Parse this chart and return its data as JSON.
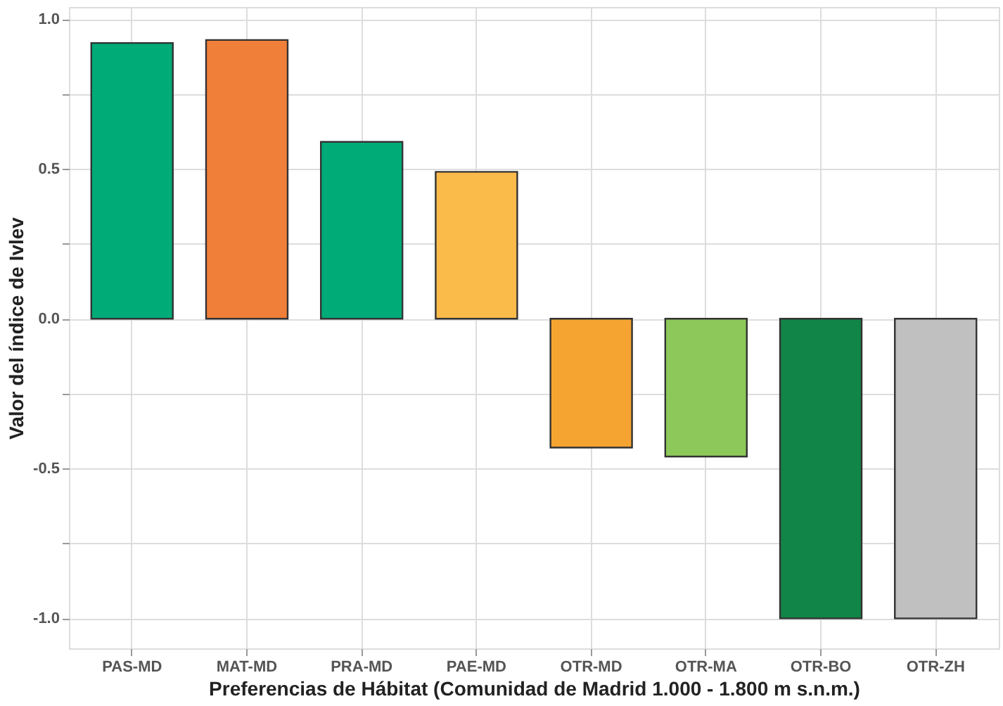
{
  "chart_data": {
    "type": "bar",
    "xlabel": "Preferencias de Hábitat (Comunidad de Madrid 1.000 - 1.800 m s.n.m.)",
    "ylabel": "Valor del índice de Ivlev",
    "categories": [
      "PAS-MD",
      "MAT-MD",
      "PRA-MD",
      "PAE-MD",
      "OTR-MD",
      "OTR-MA",
      "OTR-BO",
      "OTR-ZH"
    ],
    "values": [
      0.92,
      0.93,
      0.59,
      0.49,
      -0.43,
      -0.46,
      -1.0,
      -1.0
    ],
    "colors": [
      "#00ab78",
      "#f07f3a",
      "#00ab78",
      "#fbbb4a",
      "#f5a432",
      "#8cc85a",
      "#118547",
      "#c0c0c0"
    ],
    "ylim": [
      -1.1,
      1.04
    ],
    "yticks": [
      {
        "value": -1.0,
        "label": "-1.0"
      },
      {
        "value": -0.75,
        "label": null
      },
      {
        "value": -0.5,
        "label": "-0.5"
      },
      {
        "value": -0.25,
        "label": null
      },
      {
        "value": 0,
        "label": "0.0"
      },
      {
        "value": 0.25,
        "label": null
      },
      {
        "value": 0.5,
        "label": "0.5"
      },
      {
        "value": 0.75,
        "label": null
      },
      {
        "value": 1.0,
        "label": "1.0"
      }
    ],
    "grid": true
  }
}
